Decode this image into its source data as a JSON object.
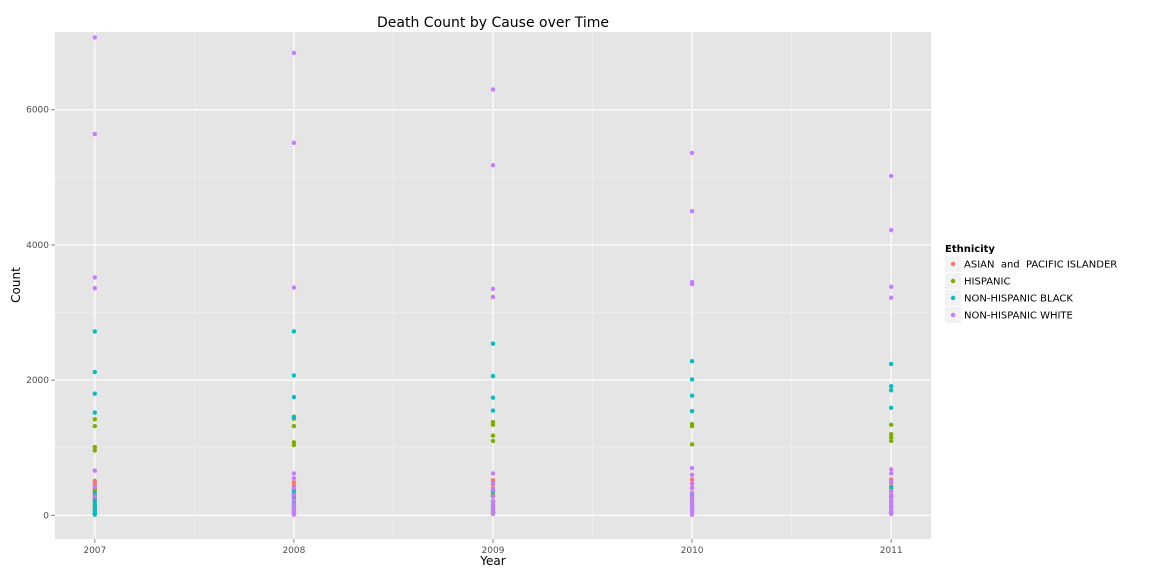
{
  "chart_data": {
    "type": "scatter",
    "title": "Death Count by Cause over Time",
    "xlabel": "Year",
    "ylabel": "Count",
    "x_categories": [
      "2007",
      "2008",
      "2009",
      "2010",
      "2011"
    ],
    "xlim": [
      2006.8,
      2011.2
    ],
    "ylim": [
      -350,
      7150
    ],
    "yticks": [
      0,
      2000,
      4000,
      6000
    ],
    "grid": true,
    "legend": {
      "title": "Ethnicity",
      "position": "right"
    },
    "series": [
      {
        "name": "ASIAN  and  PACIFIC ISLANDER",
        "color": "#F8766D",
        "points": [
          [
            2007,
            510
          ],
          [
            2007,
            470
          ],
          [
            2007,
            430
          ],
          [
            2007,
            390
          ],
          [
            2007,
            340
          ],
          [
            2007,
            300
          ],
          [
            2007,
            250
          ],
          [
            2007,
            200
          ],
          [
            2007,
            150
          ],
          [
            2007,
            110
          ],
          [
            2007,
            70
          ],
          [
            2007,
            30
          ],
          [
            2008,
            490
          ],
          [
            2008,
            440
          ],
          [
            2008,
            390
          ],
          [
            2008,
            320
          ],
          [
            2008,
            250
          ],
          [
            2008,
            190
          ],
          [
            2008,
            130
          ],
          [
            2008,
            80
          ],
          [
            2008,
            30
          ],
          [
            2009,
            520
          ],
          [
            2009,
            460
          ],
          [
            2009,
            400
          ],
          [
            2009,
            340
          ],
          [
            2009,
            280
          ],
          [
            2009,
            210
          ],
          [
            2009,
            150
          ],
          [
            2009,
            90
          ],
          [
            2009,
            40
          ],
          [
            2010,
            530
          ],
          [
            2010,
            470
          ],
          [
            2010,
            410
          ],
          [
            2010,
            330
          ],
          [
            2010,
            250
          ],
          [
            2010,
            170
          ],
          [
            2010,
            100
          ],
          [
            2010,
            40
          ],
          [
            2011,
            530
          ],
          [
            2011,
            480
          ],
          [
            2011,
            420
          ],
          [
            2011,
            350
          ],
          [
            2011,
            280
          ],
          [
            2011,
            200
          ],
          [
            2011,
            130
          ],
          [
            2011,
            60
          ]
        ]
      },
      {
        "name": "HISPANIC",
        "color": "#7CAE00",
        "points": [
          [
            2007,
            1420
          ],
          [
            2007,
            1320
          ],
          [
            2007,
            1010
          ],
          [
            2007,
            960
          ],
          [
            2007,
            380
          ],
          [
            2007,
            300
          ],
          [
            2007,
            220
          ],
          [
            2007,
            150
          ],
          [
            2007,
            80
          ],
          [
            2007,
            20
          ],
          [
            2008,
            1460
          ],
          [
            2008,
            1430
          ],
          [
            2008,
            1320
          ],
          [
            2008,
            1080
          ],
          [
            2008,
            1040
          ],
          [
            2008,
            300
          ],
          [
            2008,
            200
          ],
          [
            2008,
            100
          ],
          [
            2008,
            30
          ],
          [
            2009,
            1380
          ],
          [
            2009,
            1340
          ],
          [
            2009,
            1180
          ],
          [
            2009,
            1100
          ],
          [
            2009,
            300
          ],
          [
            2009,
            200
          ],
          [
            2009,
            110
          ],
          [
            2009,
            40
          ],
          [
            2010,
            1350
          ],
          [
            2010,
            1320
          ],
          [
            2010,
            1050
          ],
          [
            2010,
            260
          ],
          [
            2010,
            160
          ],
          [
            2010,
            70
          ],
          [
            2011,
            1340
          ],
          [
            2011,
            1200
          ],
          [
            2011,
            1150
          ],
          [
            2011,
            1100
          ],
          [
            2011,
            400
          ],
          [
            2011,
            280
          ],
          [
            2011,
            150
          ],
          [
            2011,
            50
          ]
        ]
      },
      {
        "name": "NON-HISPANIC BLACK",
        "color": "#00BFC4",
        "points": [
          [
            2007,
            2720
          ],
          [
            2007,
            2120
          ],
          [
            2007,
            1800
          ],
          [
            2007,
            1520
          ],
          [
            2007,
            330
          ],
          [
            2007,
            270
          ],
          [
            2007,
            210
          ],
          [
            2007,
            160
          ],
          [
            2007,
            120
          ],
          [
            2007,
            80
          ],
          [
            2007,
            40
          ],
          [
            2007,
            10
          ],
          [
            2008,
            2720
          ],
          [
            2008,
            2070
          ],
          [
            2008,
            1750
          ],
          [
            2008,
            1450
          ],
          [
            2008,
            360
          ],
          [
            2008,
            280
          ],
          [
            2008,
            190
          ],
          [
            2008,
            110
          ],
          [
            2008,
            50
          ],
          [
            2009,
            2540
          ],
          [
            2009,
            2060
          ],
          [
            2009,
            1740
          ],
          [
            2009,
            1550
          ],
          [
            2009,
            360
          ],
          [
            2009,
            280
          ],
          [
            2009,
            200
          ],
          [
            2009,
            120
          ],
          [
            2009,
            60
          ],
          [
            2010,
            2280
          ],
          [
            2010,
            2010
          ],
          [
            2010,
            1770
          ],
          [
            2010,
            1540
          ],
          [
            2010,
            300
          ],
          [
            2010,
            210
          ],
          [
            2010,
            130
          ],
          [
            2010,
            60
          ],
          [
            2011,
            2240
          ],
          [
            2011,
            1910
          ],
          [
            2011,
            1850
          ],
          [
            2011,
            1590
          ],
          [
            2011,
            420
          ],
          [
            2011,
            300
          ],
          [
            2011,
            200
          ],
          [
            2011,
            110
          ],
          [
            2011,
            40
          ]
        ]
      },
      {
        "name": "NON-HISPANIC WHITE",
        "color": "#C77CFF",
        "points": [
          [
            2007,
            7070
          ],
          [
            2007,
            5640
          ],
          [
            2007,
            3520
          ],
          [
            2007,
            3360
          ],
          [
            2007,
            660
          ],
          [
            2007,
            420
          ],
          [
            2007,
            280
          ],
          [
            2008,
            6840
          ],
          [
            2008,
            5510
          ],
          [
            2008,
            3370
          ],
          [
            2008,
            620
          ],
          [
            2008,
            550
          ],
          [
            2008,
            400
          ],
          [
            2008,
            300
          ],
          [
            2008,
            220
          ],
          [
            2008,
            160
          ],
          [
            2008,
            100
          ],
          [
            2008,
            50
          ],
          [
            2008,
            10
          ],
          [
            2009,
            6300
          ],
          [
            2009,
            5180
          ],
          [
            2009,
            3350
          ],
          [
            2009,
            3230
          ],
          [
            2009,
            620
          ],
          [
            2009,
            480
          ],
          [
            2009,
            380
          ],
          [
            2009,
            280
          ],
          [
            2009,
            200
          ],
          [
            2009,
            150
          ],
          [
            2009,
            100
          ],
          [
            2009,
            60
          ],
          [
            2009,
            20
          ],
          [
            2010,
            5360
          ],
          [
            2010,
            4500
          ],
          [
            2010,
            3450
          ],
          [
            2010,
            3420
          ],
          [
            2010,
            700
          ],
          [
            2010,
            600
          ],
          [
            2010,
            470
          ],
          [
            2010,
            400
          ],
          [
            2010,
            330
          ],
          [
            2010,
            270
          ],
          [
            2010,
            220
          ],
          [
            2010,
            170
          ],
          [
            2010,
            120
          ],
          [
            2010,
            80
          ],
          [
            2010,
            40
          ],
          [
            2010,
            10
          ],
          [
            2011,
            5020
          ],
          [
            2011,
            4220
          ],
          [
            2011,
            3380
          ],
          [
            2011,
            3220
          ],
          [
            2011,
            680
          ],
          [
            2011,
            620
          ],
          [
            2011,
            500
          ],
          [
            2011,
            360
          ],
          [
            2011,
            300
          ],
          [
            2011,
            250
          ],
          [
            2011,
            200
          ],
          [
            2011,
            150
          ],
          [
            2011,
            100
          ],
          [
            2011,
            60
          ],
          [
            2011,
            20
          ]
        ]
      }
    ]
  }
}
